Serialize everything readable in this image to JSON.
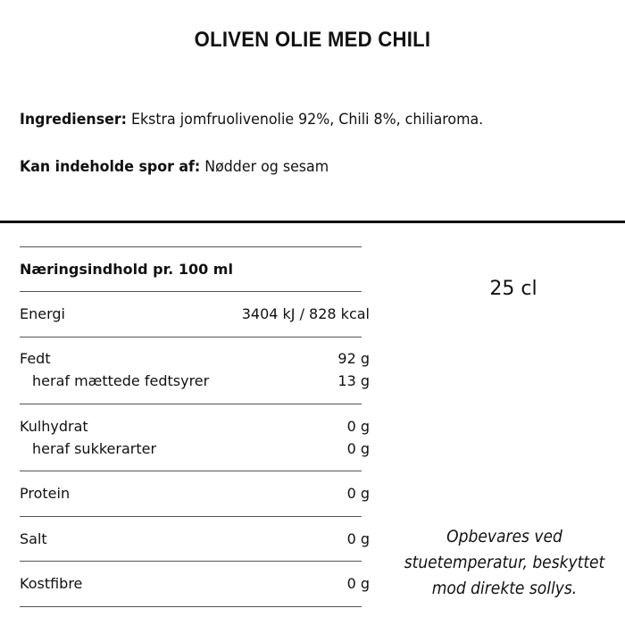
{
  "title": "OLIVEN OLIE MED CHILI",
  "ingredients": {
    "label": "Ingredienser:",
    "text": " Ekstra jomfruolivenolie 92%, Chili 8%, chiliaroma."
  },
  "allergens": {
    "label": "Kan indeholde spor af:",
    "text": " Nødder og sesam"
  },
  "nutrition": {
    "header": "Næringsindhold pr. 100 ml",
    "rows": [
      {
        "label": "Energi",
        "value": "3404 kJ / 828 kcal"
      },
      {
        "label": "Fedt",
        "value": "92 g"
      },
      {
        "label": "heraf mættede fedtsyrer",
        "value": "13 g"
      },
      {
        "label": "Kulhydrat",
        "value": "0 g"
      },
      {
        "label": "heraf sukkerarter",
        "value": "0 g"
      },
      {
        "label": "Protein",
        "value": "0 g"
      },
      {
        "label": "Salt",
        "value": "0 g"
      },
      {
        "label": "Kostfibre",
        "value": "0 g"
      }
    ]
  },
  "volume": "25 cl",
  "storage_note": [
    "Opbevares ved",
    "stuetemperatur, beskyttet",
    "mod direkte sollys."
  ]
}
